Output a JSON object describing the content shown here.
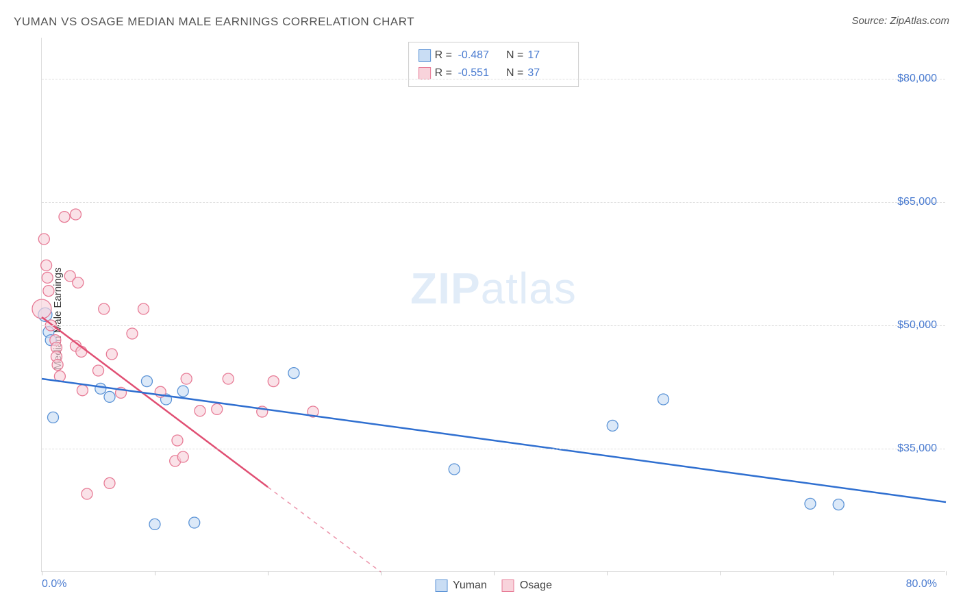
{
  "header": {
    "title": "YUMAN VS OSAGE MEDIAN MALE EARNINGS CORRELATION CHART",
    "source": "Source: ZipAtlas.com"
  },
  "watermark": {
    "bold": "ZIP",
    "rest": "atlas"
  },
  "chart": {
    "type": "scatter",
    "ylabel": "Median Male Earnings",
    "xlim": [
      0,
      80
    ],
    "ylim": [
      20000,
      85000
    ],
    "x_min_label": "0.0%",
    "x_max_label": "80.0%",
    "y_ticks": [
      35000,
      50000,
      65000,
      80000
    ],
    "y_tick_labels": [
      "$35,000",
      "$50,000",
      "$65,000",
      "$80,000"
    ],
    "x_tick_positions": [
      0,
      10,
      20,
      30,
      40,
      50,
      60,
      70,
      80
    ],
    "background_color": "#ffffff",
    "grid_color": "#dddddd",
    "axis_color": "#dddddd",
    "label_color": "#4a7bd0",
    "series": [
      {
        "name": "Yuman",
        "fill": "#c9ddf4",
        "stroke": "#5b93d6",
        "line_color": "#2f6fd0",
        "line_width": 2.5,
        "marker_r": 8,
        "R": "-0.487",
        "N": "17",
        "trend": {
          "x1": 0,
          "y1": 43500,
          "x2": 80,
          "y2": 28500,
          "solid_to_x": 80
        },
        "points": [
          {
            "x": 0.3,
            "y": 51300,
            "r": 10
          },
          {
            "x": 0.6,
            "y": 49200
          },
          {
            "x": 0.8,
            "y": 48200
          },
          {
            "x": 1.0,
            "y": 38800
          },
          {
            "x": 5.2,
            "y": 42300
          },
          {
            "x": 6.0,
            "y": 41300
          },
          {
            "x": 9.3,
            "y": 43200
          },
          {
            "x": 11.0,
            "y": 41000
          },
          {
            "x": 12.5,
            "y": 42000
          },
          {
            "x": 13.5,
            "y": 26000
          },
          {
            "x": 10.0,
            "y": 25800
          },
          {
            "x": 22.3,
            "y": 44200
          },
          {
            "x": 36.5,
            "y": 32500
          },
          {
            "x": 50.5,
            "y": 37800
          },
          {
            "x": 55.0,
            "y": 41000
          },
          {
            "x": 68.0,
            "y": 28300
          },
          {
            "x": 70.5,
            "y": 28200
          }
        ]
      },
      {
        "name": "Osage",
        "fill": "#f8d3db",
        "stroke": "#e77a95",
        "line_color": "#e04f73",
        "line_width": 2.5,
        "marker_r": 8,
        "R": "-0.551",
        "N": "37",
        "trend": {
          "x1": 0,
          "y1": 51000,
          "x2": 30,
          "y2": 20000,
          "solid_to_x": 20,
          "dash_to_x": 30
        },
        "points": [
          {
            "x": 0.0,
            "y": 52000,
            "r": 14
          },
          {
            "x": 0.2,
            "y": 60500
          },
          {
            "x": 0.4,
            "y": 57300
          },
          {
            "x": 0.5,
            "y": 55800
          },
          {
            "x": 0.6,
            "y": 54200
          },
          {
            "x": 0.8,
            "y": 50000
          },
          {
            "x": 1.2,
            "y": 48200
          },
          {
            "x": 1.3,
            "y": 47300
          },
          {
            "x": 1.3,
            "y": 46200
          },
          {
            "x": 1.4,
            "y": 45200
          },
          {
            "x": 1.6,
            "y": 43800
          },
          {
            "x": 2.0,
            "y": 63200
          },
          {
            "x": 3.0,
            "y": 63500
          },
          {
            "x": 2.5,
            "y": 56000
          },
          {
            "x": 3.2,
            "y": 55200
          },
          {
            "x": 3.0,
            "y": 47500
          },
          {
            "x": 3.5,
            "y": 46800
          },
          {
            "x": 3.6,
            "y": 42100
          },
          {
            "x": 4.0,
            "y": 29500
          },
          {
            "x": 5.0,
            "y": 44500
          },
          {
            "x": 5.5,
            "y": 52000
          },
          {
            "x": 6.0,
            "y": 30800
          },
          {
            "x": 6.2,
            "y": 46500
          },
          {
            "x": 7.0,
            "y": 41800
          },
          {
            "x": 8.0,
            "y": 49000
          },
          {
            "x": 9.0,
            "y": 52000
          },
          {
            "x": 10.5,
            "y": 41900
          },
          {
            "x": 11.8,
            "y": 33500
          },
          {
            "x": 12.0,
            "y": 36000
          },
          {
            "x": 12.8,
            "y": 43500
          },
          {
            "x": 12.5,
            "y": 34000
          },
          {
            "x": 14.0,
            "y": 39600
          },
          {
            "x": 15.5,
            "y": 39800
          },
          {
            "x": 16.5,
            "y": 43500
          },
          {
            "x": 19.5,
            "y": 39500
          },
          {
            "x": 20.5,
            "y": 43200
          },
          {
            "x": 24.0,
            "y": 39500
          }
        ]
      }
    ]
  },
  "legend_bottom": [
    {
      "label": "Yuman",
      "swatch": "blue"
    },
    {
      "label": "Osage",
      "swatch": "pink"
    }
  ]
}
